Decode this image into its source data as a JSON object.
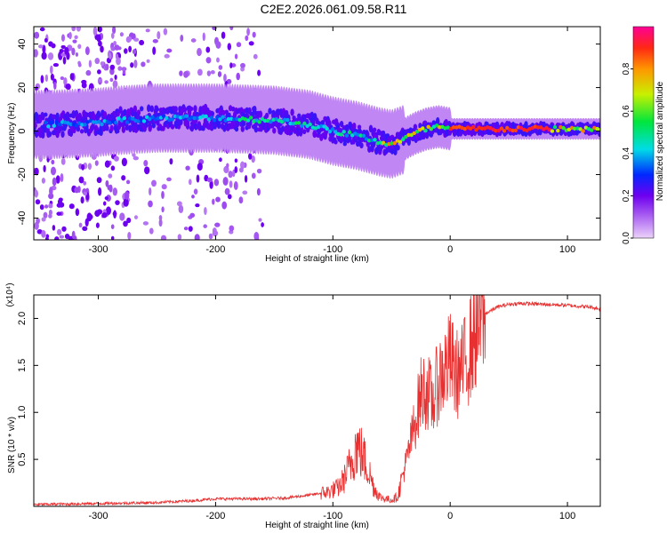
{
  "title": "C2E2.2026.061.09.58.R11",
  "chart_data": [
    {
      "type": "heatmap",
      "xlabel": "Height of straight line (km)",
      "ylabel": "Frequency (Hz)",
      "xlim": [
        -355,
        128
      ],
      "ylim": [
        -50,
        48
      ],
      "xticks": [
        -300,
        -200,
        -100,
        0,
        100
      ],
      "yticks": [
        -40,
        -20,
        0,
        20,
        40
      ],
      "ridge_x": [
        -340,
        -300,
        -280,
        -250,
        -200,
        -150,
        -120,
        -100,
        -80,
        -60,
        -50,
        -40,
        -30,
        -20,
        -10,
        0,
        20,
        60,
        100,
        125
      ],
      "ridge_freq": [
        3,
        4,
        5,
        6,
        6,
        5,
        3,
        0,
        -2,
        -5,
        -6,
        -4,
        -1,
        1,
        2,
        1,
        1,
        1,
        1,
        1
      ],
      "colorbar": {
        "label": "Normalized spectral amplitude",
        "ticks": [
          0.0,
          0.2,
          0.4,
          0.6,
          0.8
        ],
        "range": [
          0,
          1
        ]
      }
    },
    {
      "type": "line",
      "xlabel": "Height of straight line (km)",
      "ylabel": "SNR (10 * v/v)",
      "yscale_note": "(x10⁴)",
      "xlim": [
        -355,
        128
      ],
      "ylim": [
        0,
        2.25
      ],
      "xticks": [
        -300,
        -200,
        -100,
        0,
        100
      ],
      "yticks": [
        0.5,
        1.0,
        1.5,
        2.0
      ],
      "ytick_labels": [
        "0.5",
        "1.0",
        "1.5",
        "2.0"
      ],
      "series": [
        {
          "name": "SNR",
          "color": "#e83030",
          "x": [
            -355,
            -300,
            -250,
            -220,
            -200,
            -160,
            -140,
            -120,
            -105,
            -95,
            -90,
            -85,
            -80,
            -75,
            -70,
            -65,
            -60,
            -55,
            -50,
            -45,
            -40,
            -35,
            -30,
            -25,
            -20,
            -15,
            -10,
            -5,
            0,
            5,
            10,
            15,
            20,
            25,
            30,
            40,
            50,
            60,
            80,
            100,
            120,
            128
          ],
          "y": [
            0.02,
            0.03,
            0.04,
            0.06,
            0.08,
            0.08,
            0.09,
            0.12,
            0.15,
            0.2,
            0.3,
            0.45,
            0.65,
            0.55,
            0.4,
            0.2,
            0.1,
            0.08,
            0.07,
            0.1,
            0.35,
            0.6,
            0.9,
            1.2,
            1.25,
            1.1,
            1.35,
            1.45,
            1.55,
            1.4,
            1.45,
            1.6,
            1.8,
            1.95,
            2.05,
            2.12,
            2.15,
            2.16,
            2.15,
            2.14,
            2.12,
            2.1
          ]
        }
      ]
    }
  ]
}
